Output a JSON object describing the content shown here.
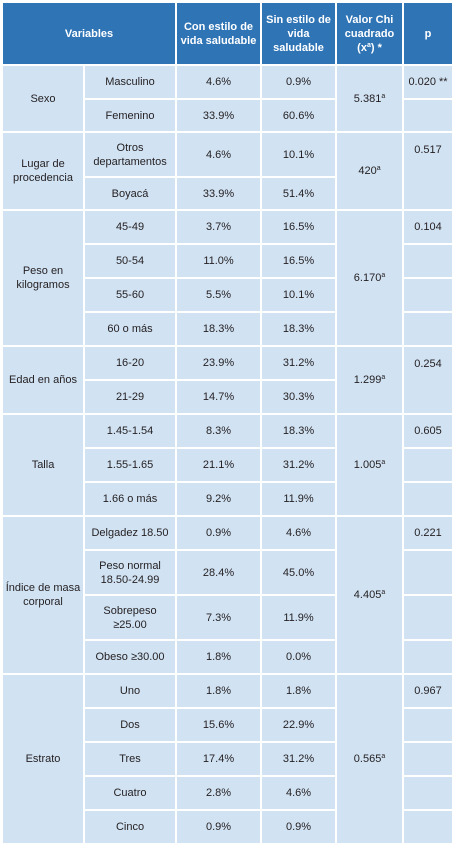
{
  "headers": {
    "variables": "Variables",
    "con_estilo": "Con estilo de vida saludable",
    "sin_estilo": "Sin estilo de vida saludable",
    "chi": "Valor Chi cuadrado (x",
    "chi_sup": "a",
    "chi_suffix": ") *",
    "p": "p"
  },
  "groups": {
    "sexo": {
      "label": "Sexo",
      "chi": "5.381",
      "chi_sup": "a",
      "p": "0.020 **",
      "rows": [
        {
          "cat": "Masculino",
          "con": "4.6%",
          "sin": "0.9%"
        },
        {
          "cat": "Femenino",
          "con": "33.9%",
          "sin": "60.6%"
        }
      ]
    },
    "lugar": {
      "label": "Lugar de procedencia",
      "chi": "420",
      "chi_sup": "a",
      "p": "0.517",
      "rows": [
        {
          "cat": "Otros departamentos",
          "con": "4.6%",
          "sin": "10.1%"
        },
        {
          "cat": "Boyacá",
          "con": "33.9%",
          "sin": "51.4%"
        }
      ]
    },
    "peso": {
      "label": "Peso en kilogramos",
      "chi": "6.170",
      "chi_sup": "a",
      "p": "0.104",
      "rows": [
        {
          "cat": "45-49",
          "con": "3.7%",
          "sin": "16.5%"
        },
        {
          "cat": "50-54",
          "con": "11.0%",
          "sin": "16.5%"
        },
        {
          "cat": "55-60",
          "con": "5.5%",
          "sin": "10.1%"
        },
        {
          "cat": "60 o más",
          "con": "18.3%",
          "sin": "18.3%"
        }
      ]
    },
    "edad": {
      "label": "Edad en años",
      "chi": "1.299",
      "chi_sup": "a",
      "p": "0.254",
      "rows": [
        {
          "cat": "16-20",
          "con": "23.9%",
          "sin": "31.2%"
        },
        {
          "cat": "21-29",
          "con": "14.7%",
          "sin": "30.3%"
        }
      ]
    },
    "talla": {
      "label": "Talla",
      "chi": "1.005",
      "chi_sup": "a",
      "p": "0.605",
      "rows": [
        {
          "cat": "1.45-1.54",
          "con": "8.3%",
          "sin": "18.3%"
        },
        {
          "cat": "1.55-1.65",
          "con": "21.1%",
          "sin": "31.2%"
        },
        {
          "cat": "1.66 o más",
          "con": "9.2%",
          "sin": "11.9%"
        }
      ]
    },
    "imc": {
      "label": "Índice de masa corporal",
      "chi": "4.405",
      "chi_sup": "a",
      "p": "0.221",
      "rows": [
        {
          "cat": "Delgadez 18.50",
          "con": "0.9%",
          "sin": "4.6%"
        },
        {
          "cat": "Peso normal 18.50-24.99",
          "con": "28.4%",
          "sin": "45.0%"
        },
        {
          "cat": "Sobrepeso ≥25.00",
          "con": "7.3%",
          "sin": "11.9%"
        },
        {
          "cat": "Obeso ≥30.00",
          "con": "1.8%",
          "sin": "0.0%"
        }
      ]
    },
    "estrato": {
      "label": "Estrato",
      "chi": "0.565",
      "chi_sup": "a",
      "p": "0.967",
      "rows": [
        {
          "cat": "Uno",
          "con": "1.8%",
          "sin": "1.8%"
        },
        {
          "cat": "Dos",
          "con": "15.6%",
          "sin": "22.9%"
        },
        {
          "cat": "Tres",
          "con": "17.4%",
          "sin": "31.2%"
        },
        {
          "cat": "Cuatro",
          "con": "2.8%",
          "sin": "4.6%"
        },
        {
          "cat": "Cinco",
          "con": "0.9%",
          "sin": "0.9%"
        }
      ]
    }
  }
}
